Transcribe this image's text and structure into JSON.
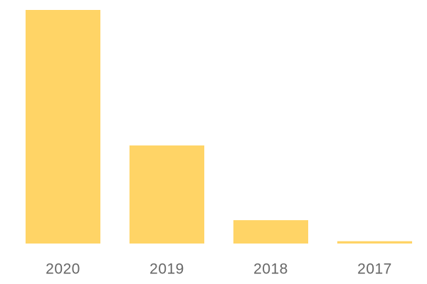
{
  "chart_data": {
    "type": "bar",
    "categories": [
      "2020",
      "2019",
      "2018",
      "2017"
    ],
    "values": [
      100,
      42,
      10,
      1
    ],
    "color": "#ffd466",
    "ylim": [
      0,
      100
    ]
  }
}
